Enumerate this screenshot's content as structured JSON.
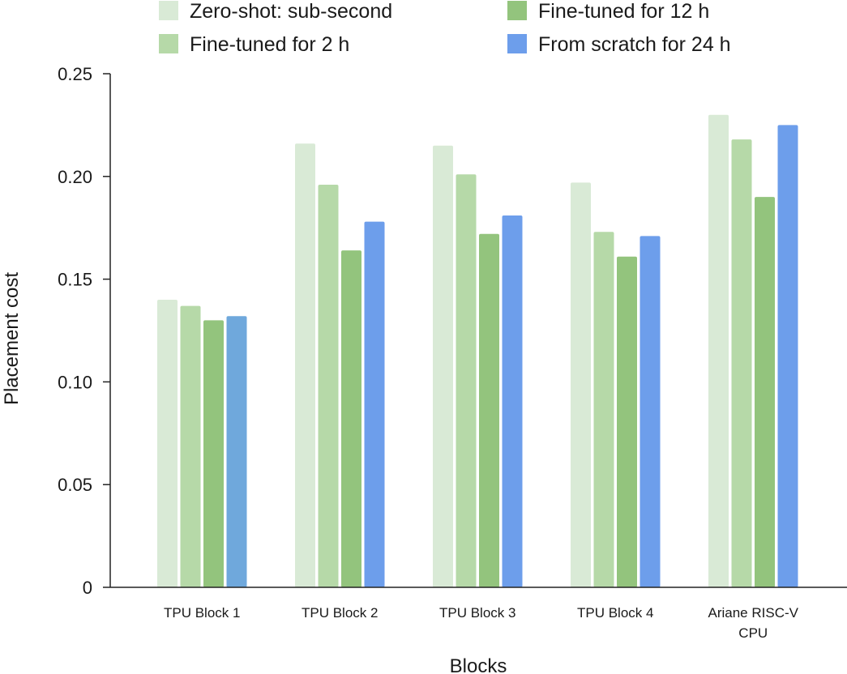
{
  "chart_data": {
    "type": "bar",
    "xlabel": "Blocks",
    "ylabel": "Placement cost",
    "ylim": [
      0,
      0.25
    ],
    "yticks": [
      "0",
      "0.05",
      "0.10",
      "0.15",
      "0.20",
      "0.25"
    ],
    "grid": false,
    "legend_position": "top",
    "categories": [
      [
        "TPU Block 1"
      ],
      [
        "TPU Block 2"
      ],
      [
        "TPU Block 3"
      ],
      [
        "TPU Block 4"
      ],
      [
        "Ariane RISC-V",
        "CPU"
      ]
    ],
    "series": [
      {
        "name": "Zero-shot: sub-second",
        "color": "#d9ead6",
        "values": [
          0.14,
          0.216,
          0.215,
          0.197,
          0.23
        ]
      },
      {
        "name": "Fine-tuned for 2 h",
        "color": "#b6d9a8",
        "values": [
          0.137,
          0.196,
          0.201,
          0.173,
          0.218
        ]
      },
      {
        "name": "Fine-tuned for 12 h",
        "color": "#93c47d",
        "values": [
          0.13,
          0.164,
          0.172,
          0.161,
          0.19
        ]
      },
      {
        "name": "From scratch for 24 h",
        "color": "#6d9eeb",
        "colors": [
          "#6fa8dc",
          "#6d9eeb",
          "#6d9eeb",
          "#6d9eeb",
          "#6d9eeb"
        ],
        "values": [
          0.132,
          0.178,
          0.181,
          0.171,
          0.225
        ]
      }
    ]
  }
}
